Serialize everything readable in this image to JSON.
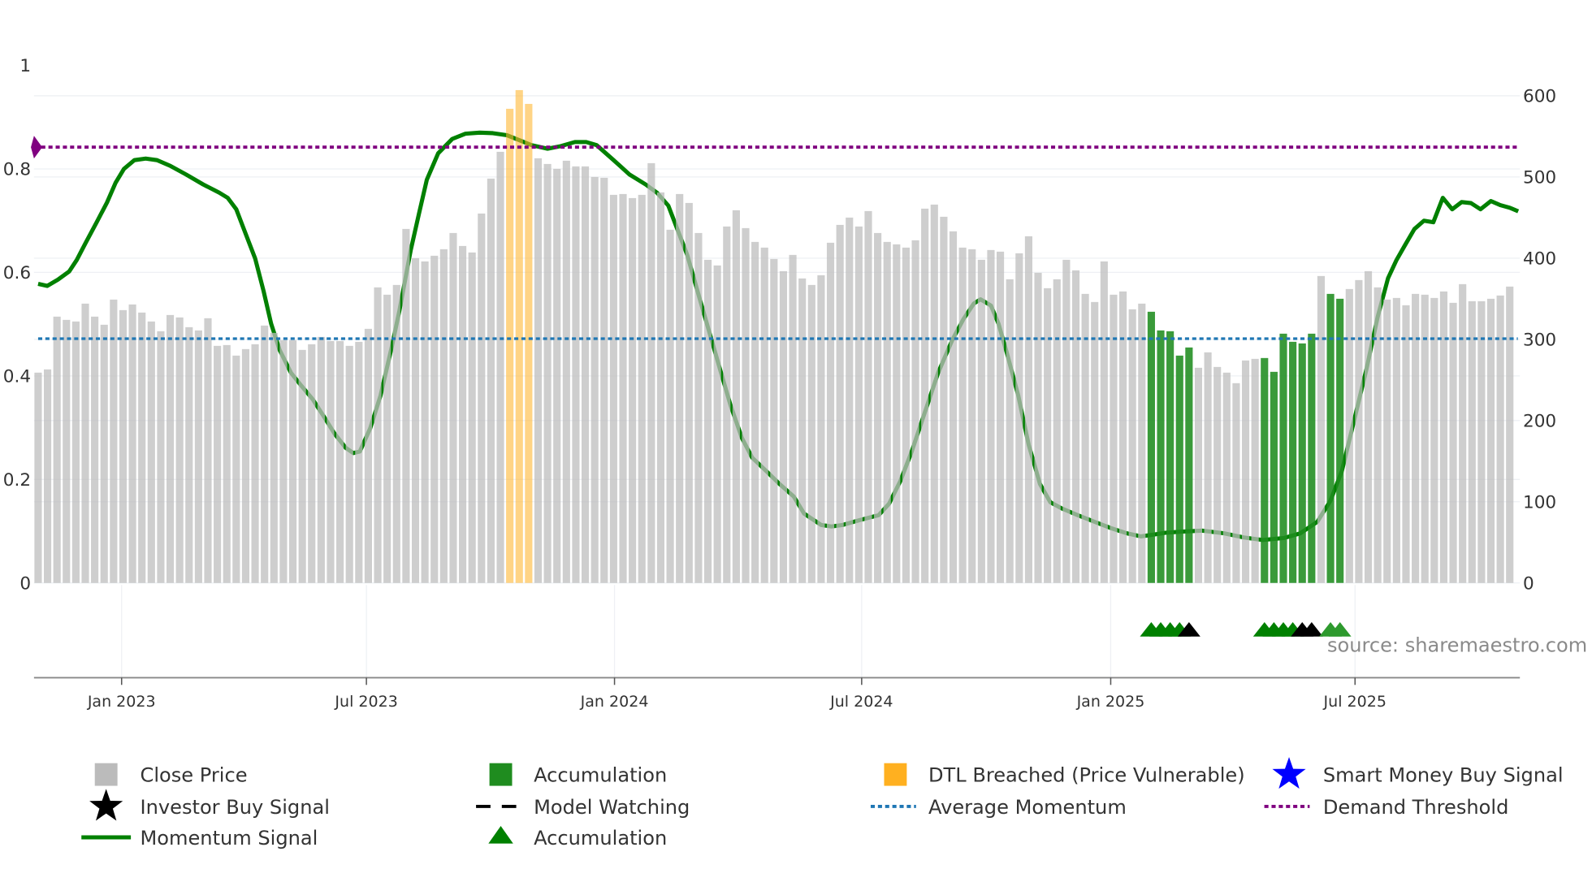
{
  "chart_data": {
    "type": "bar+line",
    "title": "",
    "watermark": "source: sharemaestro.com",
    "left_axis": {
      "label": "",
      "range": [
        0,
        1
      ],
      "ticks": [
        "0",
        "0.2",
        "0.4",
        "0.6",
        "0.8",
        "1"
      ],
      "tick_values": [
        0,
        0.2,
        0.4,
        0.6,
        0.8,
        1
      ]
    },
    "right_axis": {
      "label": "",
      "range": [
        0,
        600
      ],
      "ticks": [
        "0",
        "100",
        "200",
        "300",
        "400",
        "500",
        "600"
      ],
      "tick_values": [
        0,
        100,
        200,
        300,
        400,
        500,
        600
      ]
    },
    "x_axis": {
      "unit": "week index",
      "ticks": [
        "Jan 2023",
        "Jul 2023",
        "Jan 2024",
        "Jul 2024",
        "Jan 2025",
        "Jul 2025"
      ],
      "tick_positions": [
        8.85,
        34.8,
        61.1,
        87.3,
        113.7,
        139.6
      ],
      "range": [
        -0.5,
        156.5
      ]
    },
    "close_price": [
      259,
      263,
      328,
      324,
      322,
      344,
      328,
      318,
      349,
      336,
      343,
      333,
      322,
      310,
      330,
      327,
      315,
      311,
      326,
      292,
      293,
      280,
      288,
      294,
      317,
      308,
      299,
      299,
      287,
      294,
      303,
      298,
      298,
      292,
      297,
      313,
      364,
      355,
      367,
      436,
      400,
      396,
      403,
      411,
      431,
      415,
      407,
      455,
      498,
      531,
      584,
      607,
      590,
      523,
      516,
      510,
      520,
      513,
      513,
      500,
      499,
      478,
      479,
      474,
      478,
      517,
      481,
      435,
      479,
      468,
      431,
      398,
      391,
      439,
      459,
      437,
      420,
      413,
      399,
      384,
      404,
      375,
      367,
      379,
      419,
      441,
      450,
      439,
      458,
      431,
      420,
      417,
      413,
      422,
      461,
      466,
      451,
      433,
      413,
      411,
      398,
      410,
      408,
      374,
      406,
      427,
      382,
      363,
      374,
      398,
      385,
      356,
      346,
      396,
      355,
      359,
      337,
      344,
      334,
      311,
      310,
      280,
      290,
      265,
      284,
      266,
      259,
      246,
      274,
      276,
      277,
      260,
      307,
      297,
      295,
      307,
      378,
      356,
      350,
      362,
      373,
      384,
      364,
      349,
      351,
      342,
      356,
      355,
      351,
      359,
      345,
      368,
      347,
      347,
      350,
      354,
      365
    ],
    "accumulation_bar_indices": [
      118,
      119,
      120,
      121,
      122,
      130,
      131,
      132,
      133,
      134,
      135,
      137,
      138
    ],
    "dtl_breached_bar_indices": [
      50,
      51,
      52
    ],
    "momentum": {
      "x": [
        0,
        0.96,
        2.1,
        3.3,
        4.1,
        5.0,
        6.2,
        7.3,
        8.2,
        9.1,
        10.2,
        11.4,
        12.6,
        14.0,
        15.7,
        17.5,
        19.2,
        20.1,
        21.0,
        21.8,
        23.0,
        23.9,
        24.7,
        25.6,
        26.8,
        27.9,
        29.1,
        30.2,
        31.4,
        32.6,
        33.4,
        34.1,
        35.2,
        36.3,
        37.5,
        38.3,
        39.5,
        40.4,
        41.2,
        42.4,
        43.9,
        45.3,
        46.8,
        48.2,
        49.7,
        51.1,
        52.3,
        54.0,
        55.4,
        56.9,
        58.1,
        59.2,
        61.0,
        62.7,
        64.4,
        65.6,
        66.8,
        67.6,
        68.8,
        69.9,
        71.1,
        72.3,
        73.4,
        74.6,
        75.7,
        77.2,
        78.6,
        80.1,
        81.2,
        83.0,
        84.1,
        85.3,
        87.0,
        89.1,
        90.2,
        91.4,
        92.6,
        94.0,
        95.4,
        96.9,
        98.1,
        99.2,
        99.9,
        101.0,
        101.8,
        102.7,
        103.9,
        105.0,
        106.2,
        107.3,
        108.5,
        110.2,
        112.0,
        113.7,
        115.4,
        116.9,
        118.1,
        119.5,
        121.0,
        123.4,
        125.7,
        127.8,
        129.8,
        132.1,
        133.8,
        135.6,
        137.0,
        138.2,
        139.3,
        140.8,
        142.0,
        143.1,
        144.0,
        144.9,
        145.9,
        146.9,
        147.9,
        148.9,
        149.9,
        150.9,
        151.9,
        152.9,
        154.0,
        155.0,
        156.0,
        156.9
      ],
      "y": [
        0.578,
        0.574,
        0.586,
        0.602,
        0.624,
        0.656,
        0.697,
        0.735,
        0.773,
        0.8,
        0.817,
        0.82,
        0.817,
        0.806,
        0.789,
        0.77,
        0.754,
        0.744,
        0.722,
        0.684,
        0.627,
        0.564,
        0.501,
        0.45,
        0.406,
        0.381,
        0.355,
        0.324,
        0.289,
        0.261,
        0.251,
        0.254,
        0.299,
        0.362,
        0.457,
        0.526,
        0.643,
        0.716,
        0.779,
        0.83,
        0.858,
        0.868,
        0.87,
        0.869,
        0.865,
        0.855,
        0.846,
        0.839,
        0.844,
        0.852,
        0.852,
        0.846,
        0.817,
        0.789,
        0.77,
        0.754,
        0.729,
        0.691,
        0.634,
        0.564,
        0.488,
        0.412,
        0.343,
        0.28,
        0.242,
        0.216,
        0.191,
        0.167,
        0.134,
        0.112,
        0.109,
        0.112,
        0.121,
        0.131,
        0.153,
        0.197,
        0.254,
        0.33,
        0.406,
        0.469,
        0.51,
        0.54,
        0.548,
        0.536,
        0.501,
        0.444,
        0.362,
        0.267,
        0.191,
        0.156,
        0.144,
        0.131,
        0.118,
        0.106,
        0.096,
        0.09,
        0.093,
        0.097,
        0.099,
        0.101,
        0.096,
        0.088,
        0.083,
        0.087,
        0.096,
        0.118,
        0.159,
        0.216,
        0.299,
        0.412,
        0.514,
        0.589,
        0.624,
        0.653,
        0.684,
        0.7,
        0.697,
        0.744,
        0.722,
        0.736,
        0.734,
        0.722,
        0.738,
        0.73,
        0.725,
        0.718
      ]
    },
    "average_momentum": 0.472,
    "demand_threshold": 0.842,
    "markers": [
      {
        "type": "accumulation",
        "index": 118
      },
      {
        "type": "accumulation",
        "index": 119
      },
      {
        "type": "accumulation",
        "index": 120
      },
      {
        "type": "accumulation",
        "index": 121
      },
      {
        "type": "watch",
        "index": 122
      },
      {
        "type": "accumulation",
        "index": 130
      },
      {
        "type": "accumulation",
        "index": 131
      },
      {
        "type": "accumulation",
        "index": 132
      },
      {
        "type": "accumulation",
        "index": 133
      },
      {
        "type": "watch",
        "index": 134
      },
      {
        "type": "watch",
        "index": 135
      },
      {
        "type": "accumulation-light",
        "index": 137
      },
      {
        "type": "accumulation-light",
        "index": 138
      }
    ],
    "legend": [
      {
        "label": "Close Price",
        "icon": "gray-square"
      },
      {
        "label": "Accumulation",
        "icon": "green-square"
      },
      {
        "label": "DTL Breached (Price Vulnerable)",
        "icon": "orange-square"
      },
      {
        "label": "Smart Money Buy Signal",
        "icon": "blue-star"
      },
      {
        "label": "Investor Buy Signal",
        "icon": "black-star"
      },
      {
        "label": "Model Watching",
        "icon": "black-dashed-line"
      },
      {
        "label": "Average Momentum",
        "icon": "blue-dotted-line"
      },
      {
        "label": "Demand Threshold",
        "icon": "purple-dotted-line"
      },
      {
        "label": "Momentum Signal",
        "icon": "green-line"
      },
      {
        "label": "Accumulation",
        "icon": "green-triangle"
      }
    ],
    "legend_placement": "bottom",
    "colors": {
      "price": "#bdbdbd",
      "accumulation": "#1f8c1f",
      "dtl": "#ffb733",
      "momentum": "#008000",
      "average": "#1f77b4",
      "threshold": "#800080",
      "smart_money": "#0000ff",
      "investor": "#000000"
    }
  }
}
